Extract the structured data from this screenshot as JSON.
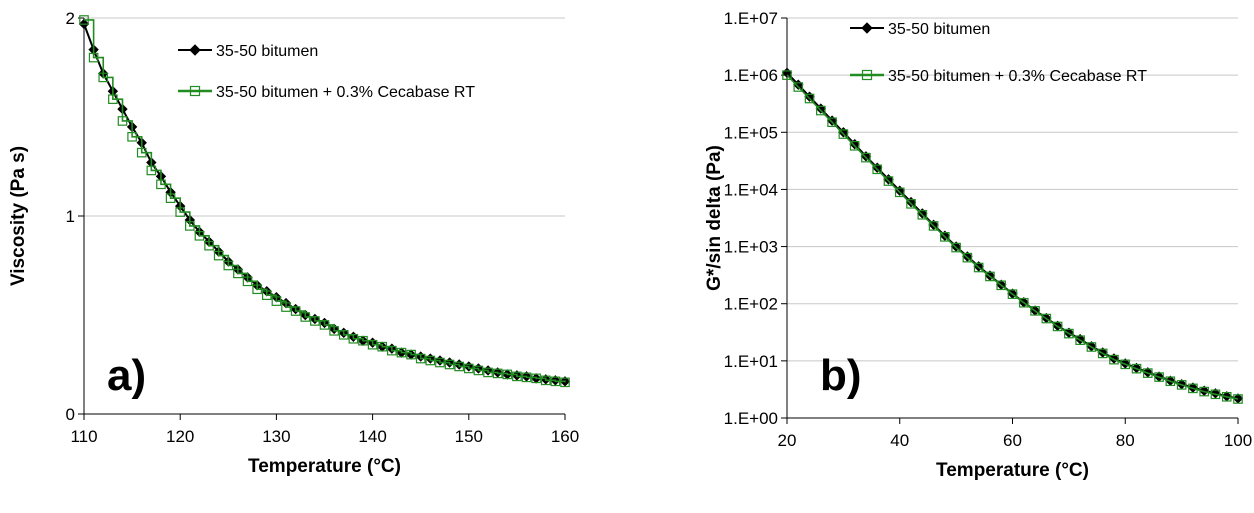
{
  "chart_data": [
    {
      "type": "line",
      "panel_label": "a)",
      "xlabel": "Temperature (°C)",
      "ylabel": "Viscosity (Pa s)",
      "xlim": [
        110,
        160
      ],
      "ylim": [
        0,
        2
      ],
      "x_ticks": [
        "110",
        "120",
        "130",
        "140",
        "150",
        "160"
      ],
      "y_ticks": [
        "0",
        "1",
        "2"
      ],
      "grid": "horizontal",
      "legend_position": "top-right",
      "x": [
        110,
        111,
        112,
        113,
        114,
        115,
        116,
        117,
        118,
        119,
        120,
        121,
        122,
        123,
        124,
        125,
        126,
        127,
        128,
        129,
        130,
        131,
        132,
        133,
        134,
        135,
        136,
        137,
        138,
        139,
        140,
        141,
        142,
        143,
        144,
        145,
        146,
        147,
        148,
        149,
        150,
        151,
        152,
        153,
        154,
        155,
        156,
        157,
        158,
        159,
        160
      ],
      "series": [
        {
          "name": "35-50 bitumen",
          "color": "#000000",
          "marker": "filled-diamond",
          "values": [
            1.97,
            1.84,
            1.72,
            1.63,
            1.54,
            1.45,
            1.37,
            1.27,
            1.2,
            1.12,
            1.05,
            0.98,
            0.92,
            0.87,
            0.82,
            0.77,
            0.73,
            0.69,
            0.65,
            0.62,
            0.59,
            0.56,
            0.53,
            0.5,
            0.48,
            0.46,
            0.43,
            0.41,
            0.39,
            0.37,
            0.36,
            0.34,
            0.33,
            0.31,
            0.3,
            0.29,
            0.28,
            0.27,
            0.26,
            0.25,
            0.24,
            0.23,
            0.22,
            0.21,
            0.2,
            0.195,
            0.19,
            0.18,
            0.175,
            0.17,
            0.165
          ]
        },
        {
          "name": "35-50 bitumen + 0.3% Cecabase RT",
          "color": "#228B22",
          "marker": "open-square",
          "values": [
            1.99,
            1.8,
            1.7,
            1.59,
            1.48,
            1.4,
            1.32,
            1.23,
            1.16,
            1.09,
            1.02,
            0.95,
            0.9,
            0.85,
            0.8,
            0.75,
            0.71,
            0.67,
            0.63,
            0.6,
            0.57,
            0.54,
            0.52,
            0.49,
            0.47,
            0.45,
            0.42,
            0.4,
            0.38,
            0.37,
            0.35,
            0.34,
            0.32,
            0.31,
            0.3,
            0.28,
            0.27,
            0.26,
            0.25,
            0.24,
            0.23,
            0.22,
            0.21,
            0.205,
            0.2,
            0.19,
            0.185,
            0.18,
            0.17,
            0.165,
            0.16
          ]
        }
      ]
    },
    {
      "type": "line",
      "panel_label": "b)",
      "xlabel": "Temperature (°C)",
      "ylabel": "G*/sin delta (Pa)",
      "xlim": [
        20,
        100
      ],
      "ylim": [
        1,
        10000000
      ],
      "yscale": "log",
      "x_ticks": [
        "20",
        "40",
        "60",
        "80",
        "100"
      ],
      "y_ticks": [
        "1.E+00",
        "1.E+01",
        "1.E+02",
        "1.E+03",
        "1.E+04",
        "1.E+05",
        "1.E+06",
        "1.E+07"
      ],
      "grid": "horizontal",
      "legend_position": "top-right",
      "x": [
        20,
        22,
        24,
        26,
        28,
        30,
        32,
        34,
        36,
        38,
        40,
        42,
        44,
        46,
        48,
        50,
        52,
        54,
        56,
        58,
        60,
        62,
        64,
        66,
        68,
        70,
        72,
        74,
        76,
        78,
        80,
        82,
        84,
        86,
        88,
        90,
        92,
        94,
        96,
        98,
        100
      ],
      "series": [
        {
          "name": "35-50 bitumen",
          "color": "#000000",
          "marker": "filled-diamond",
          "values": [
            1100000,
            680000,
            420000,
            260000,
            160000,
            100000,
            62000,
            38000,
            24000,
            15000,
            9500,
            6000,
            3800,
            2400,
            1550,
            1000,
            670,
            450,
            310,
            215,
            150,
            106,
            76,
            56,
            41,
            31,
            24,
            18,
            14,
            11,
            9,
            7.5,
            6.3,
            5.3,
            4.5,
            3.9,
            3.4,
            3.0,
            2.7,
            2.4,
            2.2
          ]
        },
        {
          "name": "35-50 bitumen + 0.3% Cecabase RT",
          "color": "#228B22",
          "marker": "open-square",
          "values": [
            1000000,
            620000,
            390000,
            240000,
            150000,
            93000,
            58000,
            36000,
            22500,
            14000,
            8900,
            5600,
            3600,
            2300,
            1480,
            960,
            640,
            430,
            300,
            210,
            147,
            104,
            75,
            55,
            40,
            30,
            23,
            17.5,
            13.5,
            10.5,
            8.7,
            7.3,
            6.1,
            5.2,
            4.4,
            3.8,
            3.3,
            2.9,
            2.6,
            2.35,
            2.15
          ]
        }
      ]
    }
  ]
}
